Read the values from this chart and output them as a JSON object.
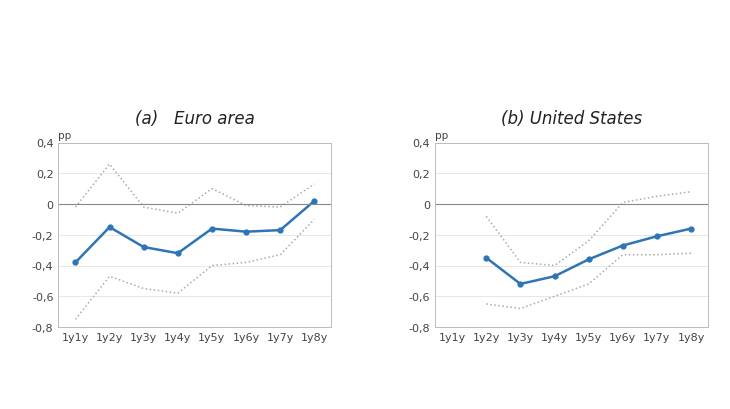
{
  "x_labels": [
    "1y1y",
    "1y2y",
    "1y3y",
    "1y4y",
    "1y5y",
    "1y6y",
    "1y7y",
    "1y8y"
  ],
  "euro_main": [
    -0.38,
    -0.15,
    -0.28,
    -0.32,
    -0.16,
    -0.18,
    -0.17,
    0.02
  ],
  "euro_upper": [
    -0.02,
    0.26,
    -0.02,
    -0.06,
    0.1,
    -0.01,
    -0.02,
    0.13
  ],
  "euro_lower": [
    -0.75,
    -0.47,
    -0.55,
    -0.58,
    -0.4,
    -0.38,
    -0.33,
    -0.1
  ],
  "us_main": [
    null,
    -0.35,
    -0.52,
    -0.47,
    -0.36,
    -0.27,
    -0.21,
    -0.16
  ],
  "us_upper": [
    null,
    -0.08,
    -0.38,
    -0.4,
    -0.24,
    0.01,
    0.05,
    0.08
  ],
  "us_lower": [
    null,
    -0.65,
    -0.68,
    -0.6,
    -0.52,
    -0.33,
    -0.33,
    -0.32
  ],
  "title_a": "(a)   Euro area",
  "title_b": "(b) United States",
  "pp_label": "pp",
  "ylim": [
    -0.8,
    0.4
  ],
  "yticks": [
    -0.8,
    -0.6,
    -0.4,
    -0.2,
    0.0,
    0.2,
    0.4
  ],
  "ytick_labels": [
    "-0,8",
    "-0,6",
    "-0,4",
    "-0,2",
    "0",
    "0,2",
    "0,4"
  ],
  "line_color": "#2E75B6",
  "ci_color": "#aaaaaa",
  "bg_color": "#ffffff",
  "title_fontsize": 12,
  "tick_fontsize": 8,
  "pp_fontsize": 7.5
}
